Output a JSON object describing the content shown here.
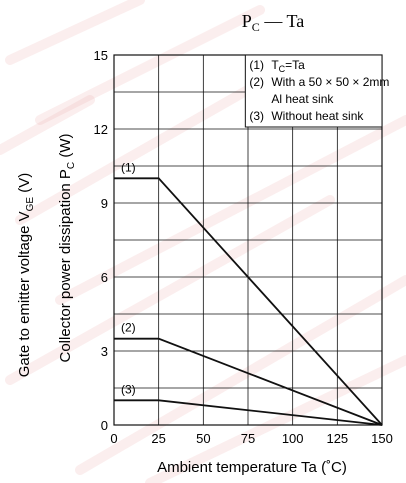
{
  "chart_data": {
    "type": "line",
    "title": "P",
    "title_sub": "C",
    "title_rest": " — Ta",
    "xlabel": "Ambient temperature   Ta   (˚C)",
    "ylabel_outer": "Gate to emitter voltage   V",
    "ylabel_outer_sub": "GE",
    "ylabel_outer_unit": "   (V)",
    "ylabel_inner": "Collector power dissipation   P",
    "ylabel_inner_sub": "C",
    "ylabel_inner_unit": "   (W)",
    "xlim": [
      0,
      150
    ],
    "ylim": [
      0,
      15
    ],
    "x_ticks": [
      0,
      25,
      50,
      75,
      100,
      125,
      150
    ],
    "y_ticks": [
      0,
      3,
      6,
      9,
      12,
      15
    ],
    "grid": true,
    "series": [
      {
        "name": "(1)",
        "x": [
          0,
          25,
          150
        ],
        "y": [
          10,
          10,
          0
        ]
      },
      {
        "name": "(2)",
        "x": [
          0,
          25,
          150
        ],
        "y": [
          3.5,
          3.5,
          0
        ]
      },
      {
        "name": "(3)",
        "x": [
          0,
          25,
          150
        ],
        "y": [
          1,
          1,
          0
        ]
      }
    ],
    "legend": {
      "placement": "top-right",
      "entries": [
        {
          "num": "(1)",
          "text": "T",
          "sub": "C",
          "rest": "=Ta"
        },
        {
          "num": "(2)",
          "text": "With a 50 × 50 × 2mm"
        },
        {
          "num": "",
          "text": "Al heat sink"
        },
        {
          "num": "(3)",
          "text": "Without heat sink"
        }
      ]
    },
    "colors": {
      "line": "#111111",
      "grid": "#111111",
      "watermark": "#e8a0a0"
    }
  }
}
